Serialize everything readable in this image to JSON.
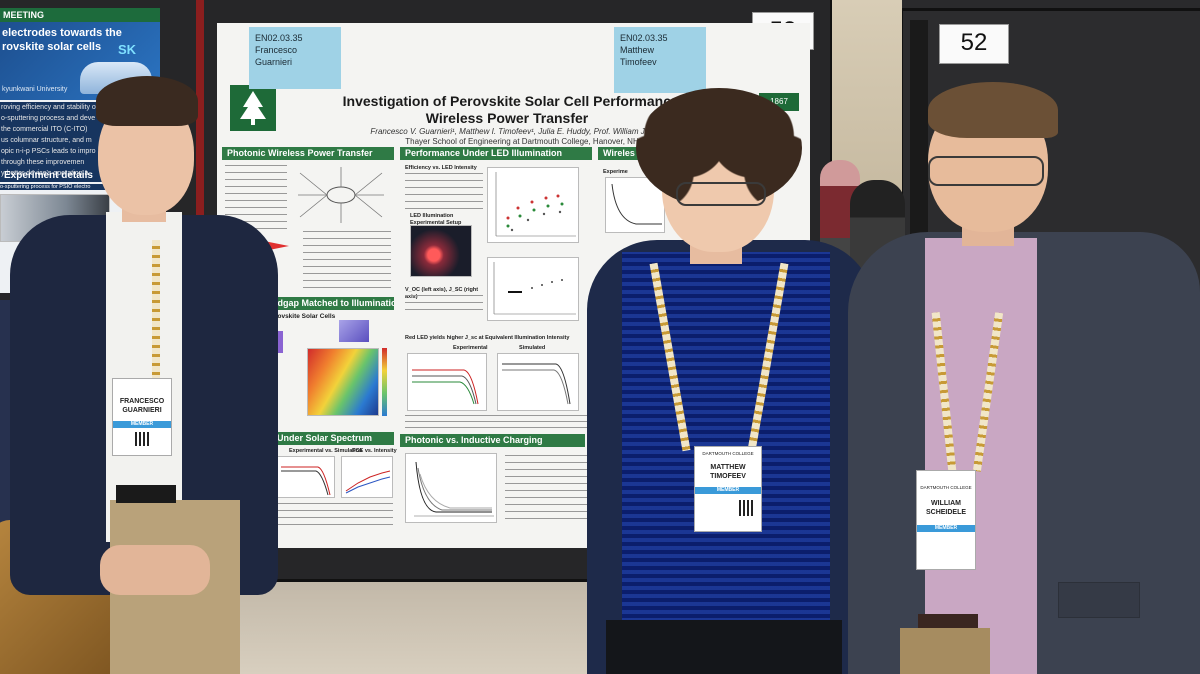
{
  "left_poster": {
    "heading": "MEETING",
    "title_lines": [
      "electrodes towards the",
      "rovskite solar cells"
    ],
    "affiliation": "kyunkwani University",
    "body_lines": [
      "roving efficiency and stability of",
      "o-sputtering process and deve",
      "the commercial ITO (C-ITO)",
      "us columnar structure, and m",
      "opic n-i-p PSCs leads to impro",
      "through these improvemen",
      "y better device's operation a"
    ],
    "section": "Experiment details",
    "section_sub": "o-sputtering process for PSIO electro",
    "logo": "SK",
    "label": "PSIO"
  },
  "center_poster": {
    "sticky_left": {
      "code": "EN02.03.35",
      "first": "Francesco",
      "last": "Guarnieri"
    },
    "sticky_right": {
      "code": "EN02.03.35",
      "first": "Matthew",
      "last": "Timofeev"
    },
    "board_number": "53",
    "year_badge": "1867",
    "title_line1": "Investigation of Perovskite Solar Cell Performance for",
    "title_line2": "Wireless Power Transfer",
    "authors": "Francesco V. Guarnieri¹, Matthew I. Timofeev¹, Julia E. Huddy, Prof. William J. Scheid",
    "institution": "Thayer School of Engineering at Dartmouth College, Hanover, NH",
    "sections": {
      "wpt": "Photonic Wireless Power Transfer",
      "led": "Performance Under LED Illumination",
      "wireless": "Wireles",
      "bandgap": "andgap Matched to Illumination",
      "solar": "Under Solar Spectrum",
      "charging": "Photonic vs. Inductive Charging"
    },
    "sub_labels": {
      "psc": "Perovskite Solar Cells",
      "led_setup": "LED Illumination Experimental Setup",
      "red_led": "Red LED yields higher J_sc at Equivalent Illumination Intensity",
      "experimental": "Experimental",
      "simulated": "Simulated",
      "exp_vs_sim": "Experimental vs. Simulation",
      "pce_vs_int": "PCE vs. Intensity",
      "experime": "Experime",
      "efficiency": "Efficiency vs. LED Intensity",
      "voc_jsc": "V_OC (left axis), J_SC (right axis)"
    }
  },
  "right_board": {
    "board_number": "52"
  },
  "people": {
    "left_badge": {
      "first": "FRANCESCO",
      "last": "GUARNIERI",
      "strip": "MEMBER"
    },
    "center_badge": {
      "first": "MATTHEW",
      "last": "TIMOFEEV",
      "strip": "MEMBER",
      "org": "DARTMOUTH COLLEGE"
    },
    "right_badge": {
      "first": "WILLIAM",
      "last": "SCHEIDELE",
      "strip": "MEMBER",
      "org": "DARTMOUTH COLLEGE"
    }
  },
  "colors": {
    "poster_green": "#2f7a45",
    "sticky_blue": "#9fd2e6",
    "navy_blazer": "#1e2740",
    "gray_blazer": "#3c4250",
    "blue_hoodie": "#1e2a4a",
    "gingham_blue": "#3d62b3",
    "pink_shirt": "#c9a7c3",
    "khaki": "#b9a27a"
  }
}
